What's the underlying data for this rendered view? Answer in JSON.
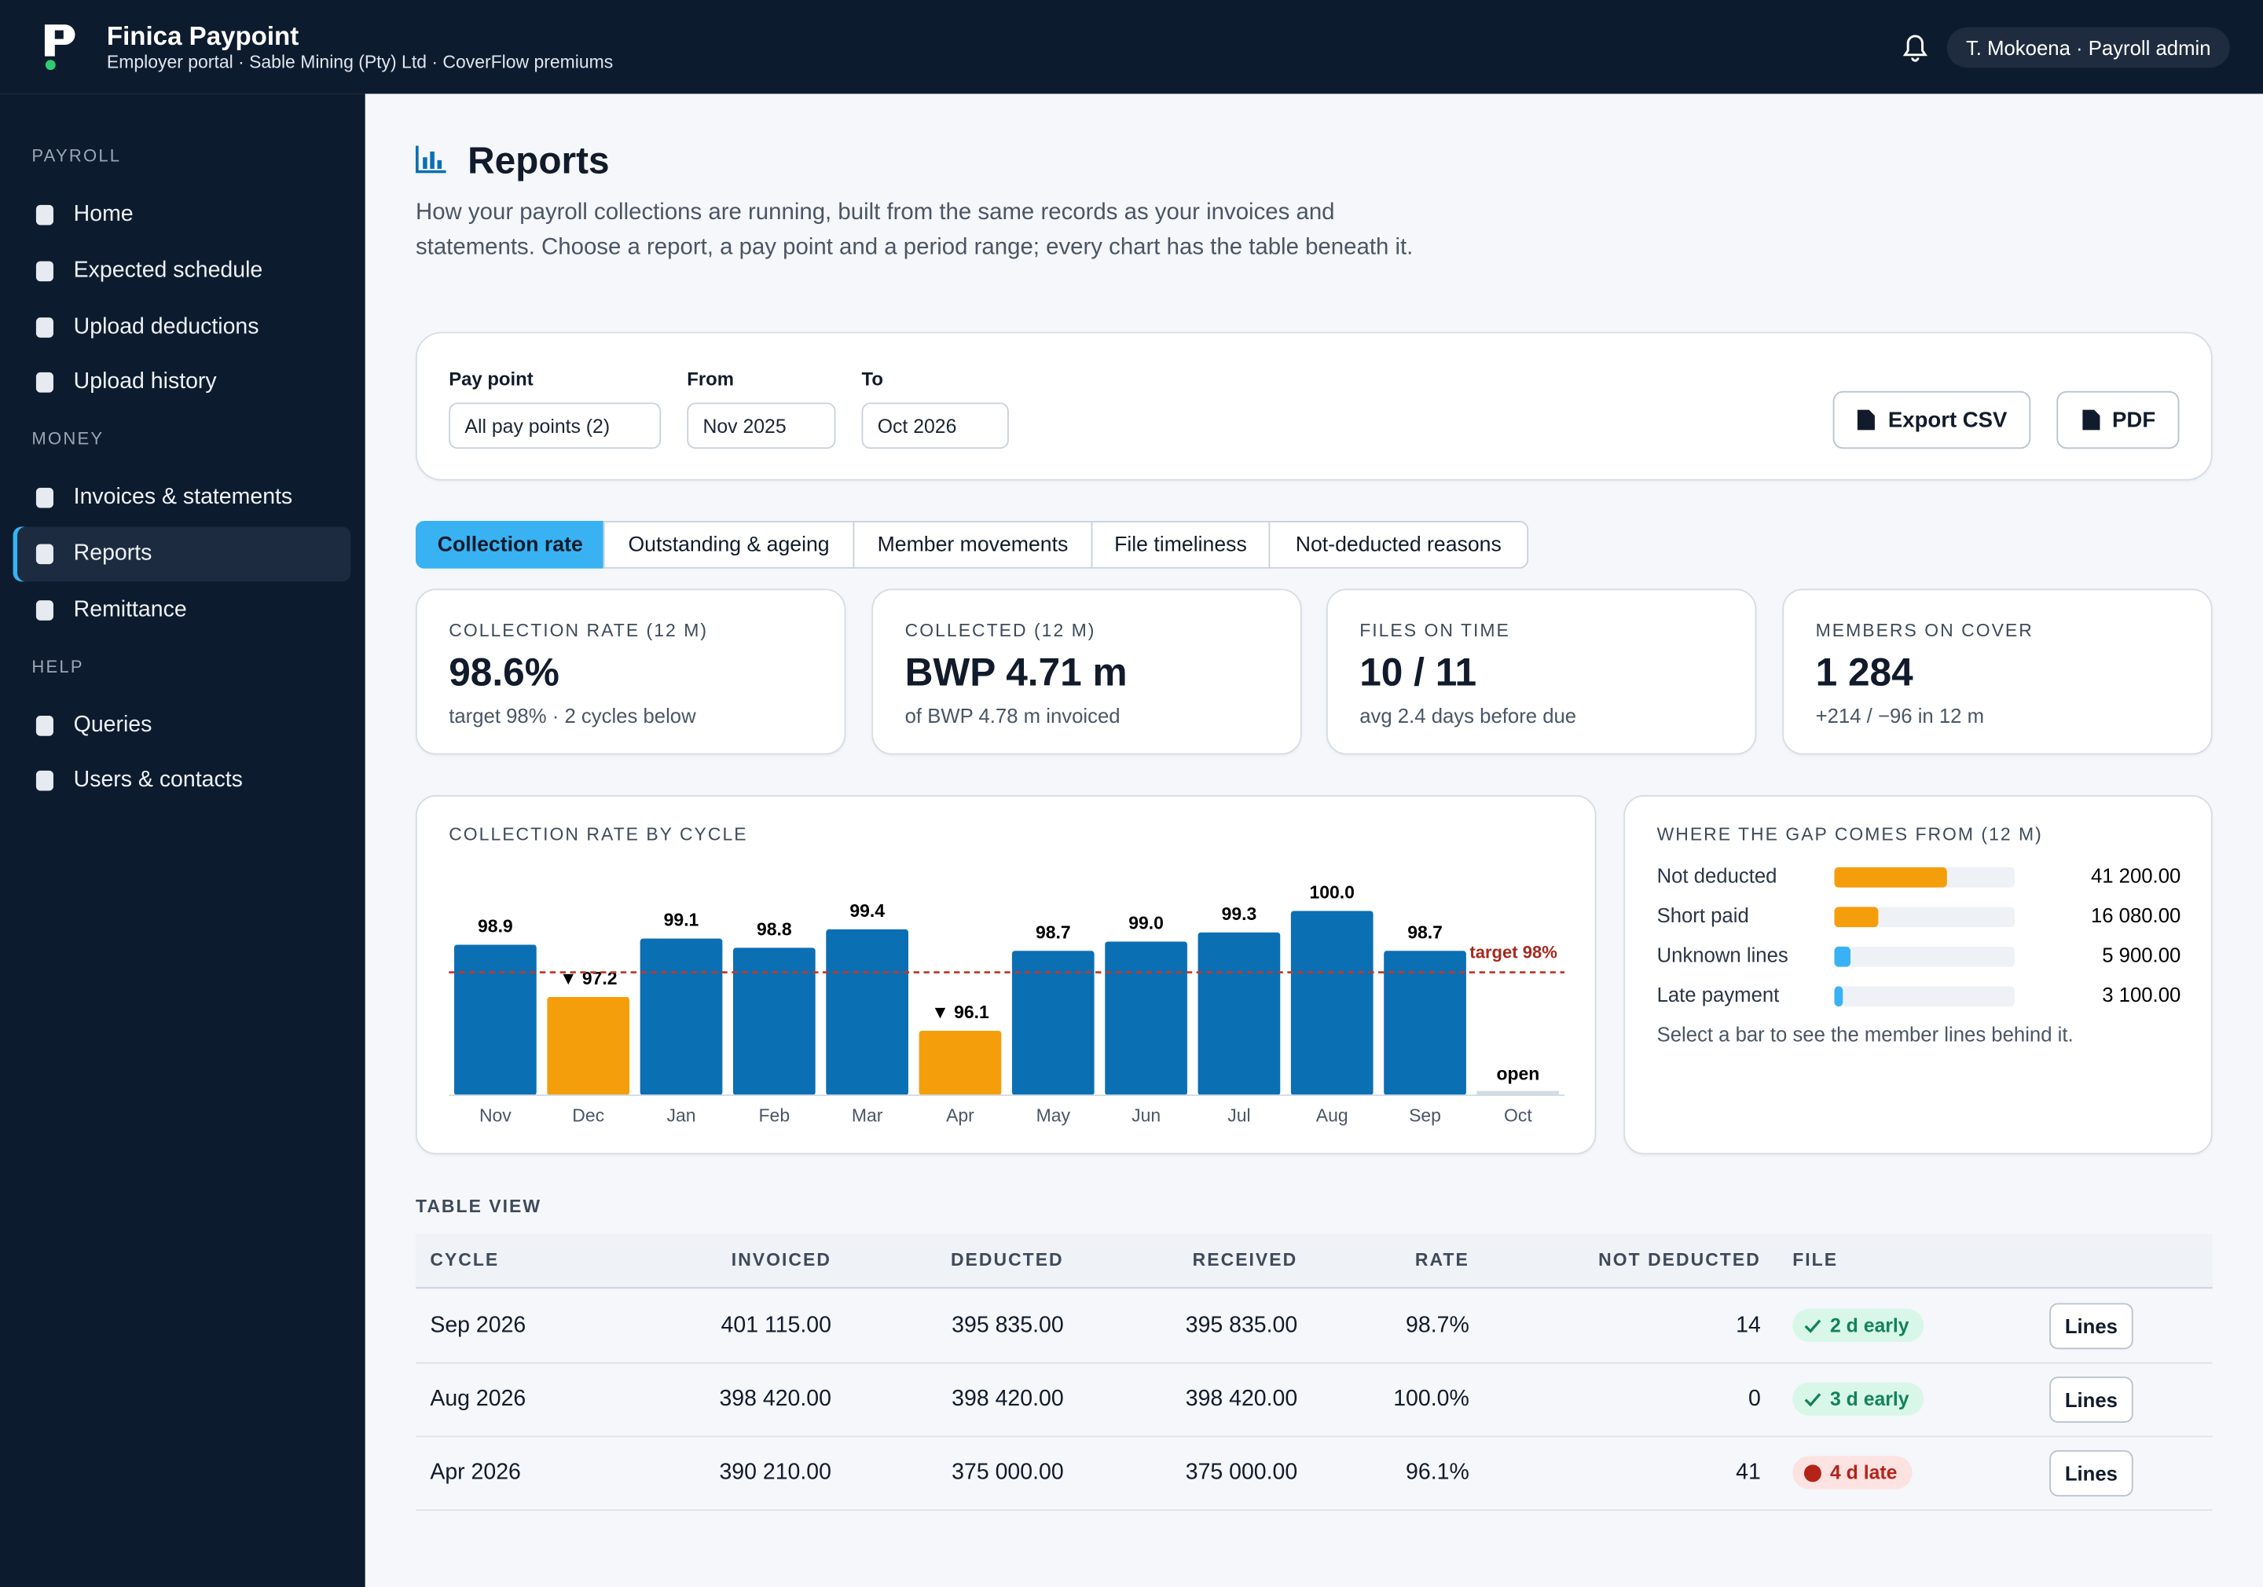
{
  "header": {
    "brand": "Finica Paypoint",
    "subtitle": "Employer portal · Sable Mining (Pty) Ltd · CoverFlow premiums",
    "user": "T. Mokoena · Payroll admin"
  },
  "sidebar": {
    "active": "Reports",
    "sections": [
      {
        "title": "PAYROLL",
        "items": [
          "Home",
          "Expected schedule",
          "Upload deductions",
          "Upload history"
        ]
      },
      {
        "title": "MONEY",
        "items": [
          "Invoices & statements",
          "Reports",
          "Remittance"
        ]
      },
      {
        "title": "HELP",
        "items": [
          "Queries",
          "Users & contacts"
        ]
      }
    ]
  },
  "page": {
    "title": "Reports",
    "description": "How your payroll collections are running, built from the same records as your invoices and statements. Choose a report, a pay point and a period range; every chart has the table beneath it."
  },
  "filters": {
    "pay_point_label": "Pay point",
    "pay_point": "All pay points (2)",
    "from_label": "From",
    "from": "Nov 2025",
    "to_label": "To",
    "to": "Oct 2026",
    "export_csv": "Export CSV",
    "pdf": "PDF"
  },
  "tabs": {
    "active": 0,
    "items": [
      "Collection rate",
      "Outstanding & ageing",
      "Member movements",
      "File timeliness",
      "Not-deducted reasons"
    ]
  },
  "kpis": [
    {
      "label": "COLLECTION RATE (12 M)",
      "value": "98.6%",
      "note": "target 98% · 2 cycles below"
    },
    {
      "label": "COLLECTED (12 M)",
      "value": "BWP 4.71 m",
      "note": "of BWP 4.78 m invoiced"
    },
    {
      "label": "FILES ON TIME",
      "value": "10 / 11",
      "note": "avg 2.4 days before due"
    },
    {
      "label": "MEMBERS ON COVER",
      "value": "1 284",
      "note": "+214 / −96 in 12 m"
    }
  ],
  "chart_data": [
    {
      "type": "bar",
      "title": "COLLECTION RATE BY CYCLE",
      "categories": [
        "Nov",
        "Dec",
        "Jan",
        "Feb",
        "Mar",
        "Apr",
        "May",
        "Jun",
        "Jul",
        "Aug",
        "Sep",
        "Oct"
      ],
      "values": [
        98.9,
        97.2,
        99.1,
        98.8,
        99.4,
        96.1,
        98.7,
        99.0,
        99.3,
        100.0,
        98.7,
        null
      ],
      "value_labels": [
        "98.9",
        "▼ 97.2",
        "99.1",
        "98.8",
        "99.4",
        "▼ 96.1",
        "98.7",
        "99.0",
        "99.3",
        "100.0",
        "98.7",
        "open"
      ],
      "color": "#0b6fb3",
      "below_target_color": "#f59e0b",
      "open_color": "#d3dbe4",
      "target": 98,
      "target_label": "target 98%",
      "ylim": [
        94,
        100.2
      ]
    },
    {
      "type": "hbar",
      "title": "WHERE THE GAP COMES FROM (12 M)",
      "categories": [
        "Not deducted",
        "Short paid",
        "Unknown lines",
        "Late payment"
      ],
      "values": [
        41200,
        16080,
        5900,
        3100
      ],
      "value_labels": [
        "41 200.00",
        "16 080.00",
        "5 900.00",
        "3 100.00"
      ],
      "colors": [
        "#f59e0b",
        "#f59e0b",
        "#38b2f2",
        "#38b2f2"
      ],
      "xlim": [
        0,
        66000
      ],
      "note": "Select a bar to see the member lines behind it."
    }
  ],
  "table": {
    "title": "TABLE VIEW",
    "columns": [
      "CYCLE",
      "INVOICED",
      "DEDUCTED",
      "RECEIVED",
      "RATE",
      "NOT DEDUCTED",
      "FILE"
    ],
    "rows": [
      {
        "cycle": "Sep 2026",
        "invoiced": "401 115.00",
        "deducted": "395 835.00",
        "received": "395 835.00",
        "rate": "98.7%",
        "not_deducted": "14",
        "file": "2 d early",
        "file_status": "early",
        "action": "Lines"
      },
      {
        "cycle": "Aug 2026",
        "invoiced": "398 420.00",
        "deducted": "398 420.00",
        "received": "398 420.00",
        "rate": "100.0%",
        "not_deducted": "0",
        "file": "3 d early",
        "file_status": "early",
        "action": "Lines"
      },
      {
        "cycle": "Apr 2026",
        "invoiced": "390 210.00",
        "deducted": "375 000.00",
        "received": "375 000.00",
        "rate": "96.1%",
        "not_deducted": "41",
        "file": "4 d late",
        "file_status": "late",
        "action": "Lines"
      }
    ]
  }
}
